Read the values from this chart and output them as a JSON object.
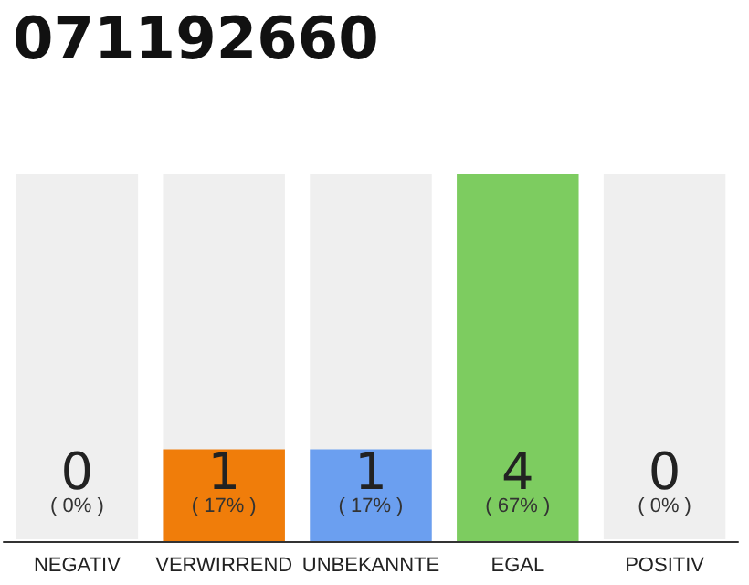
{
  "chart_data": {
    "type": "bar",
    "title": "071192660",
    "categories": [
      "NEGATIV",
      "VERWIRREND",
      "UNBEKANNTE",
      "EGAL",
      "POSITIV"
    ],
    "values": [
      0,
      1,
      1,
      4,
      0
    ],
    "colors": [
      "#cccccc",
      "#f07d0a",
      "#6b9ff0",
      "#7dcc60",
      "#cccccc"
    ],
    "annotations": [
      "( 0% )",
      "( 17% )",
      "( 17% )",
      "( 67% )",
      "( 0% )"
    ],
    "bands": [
      {
        "axis": "x",
        "from": "NEGATIV",
        "to": "NEGATIV",
        "color": "#efefef"
      },
      {
        "axis": "x",
        "from": "VERWIRREND",
        "to": "VERWIRREND",
        "color": "#efefef"
      },
      {
        "axis": "x",
        "from": "UNBEKANNTE",
        "to": "UNBEKANNTE",
        "color": "#efefef"
      },
      {
        "axis": "x",
        "from": "POSITIV",
        "to": "POSITIV",
        "color": "#efefef"
      }
    ],
    "data_labels": true,
    "tick_labels": "x"
  }
}
